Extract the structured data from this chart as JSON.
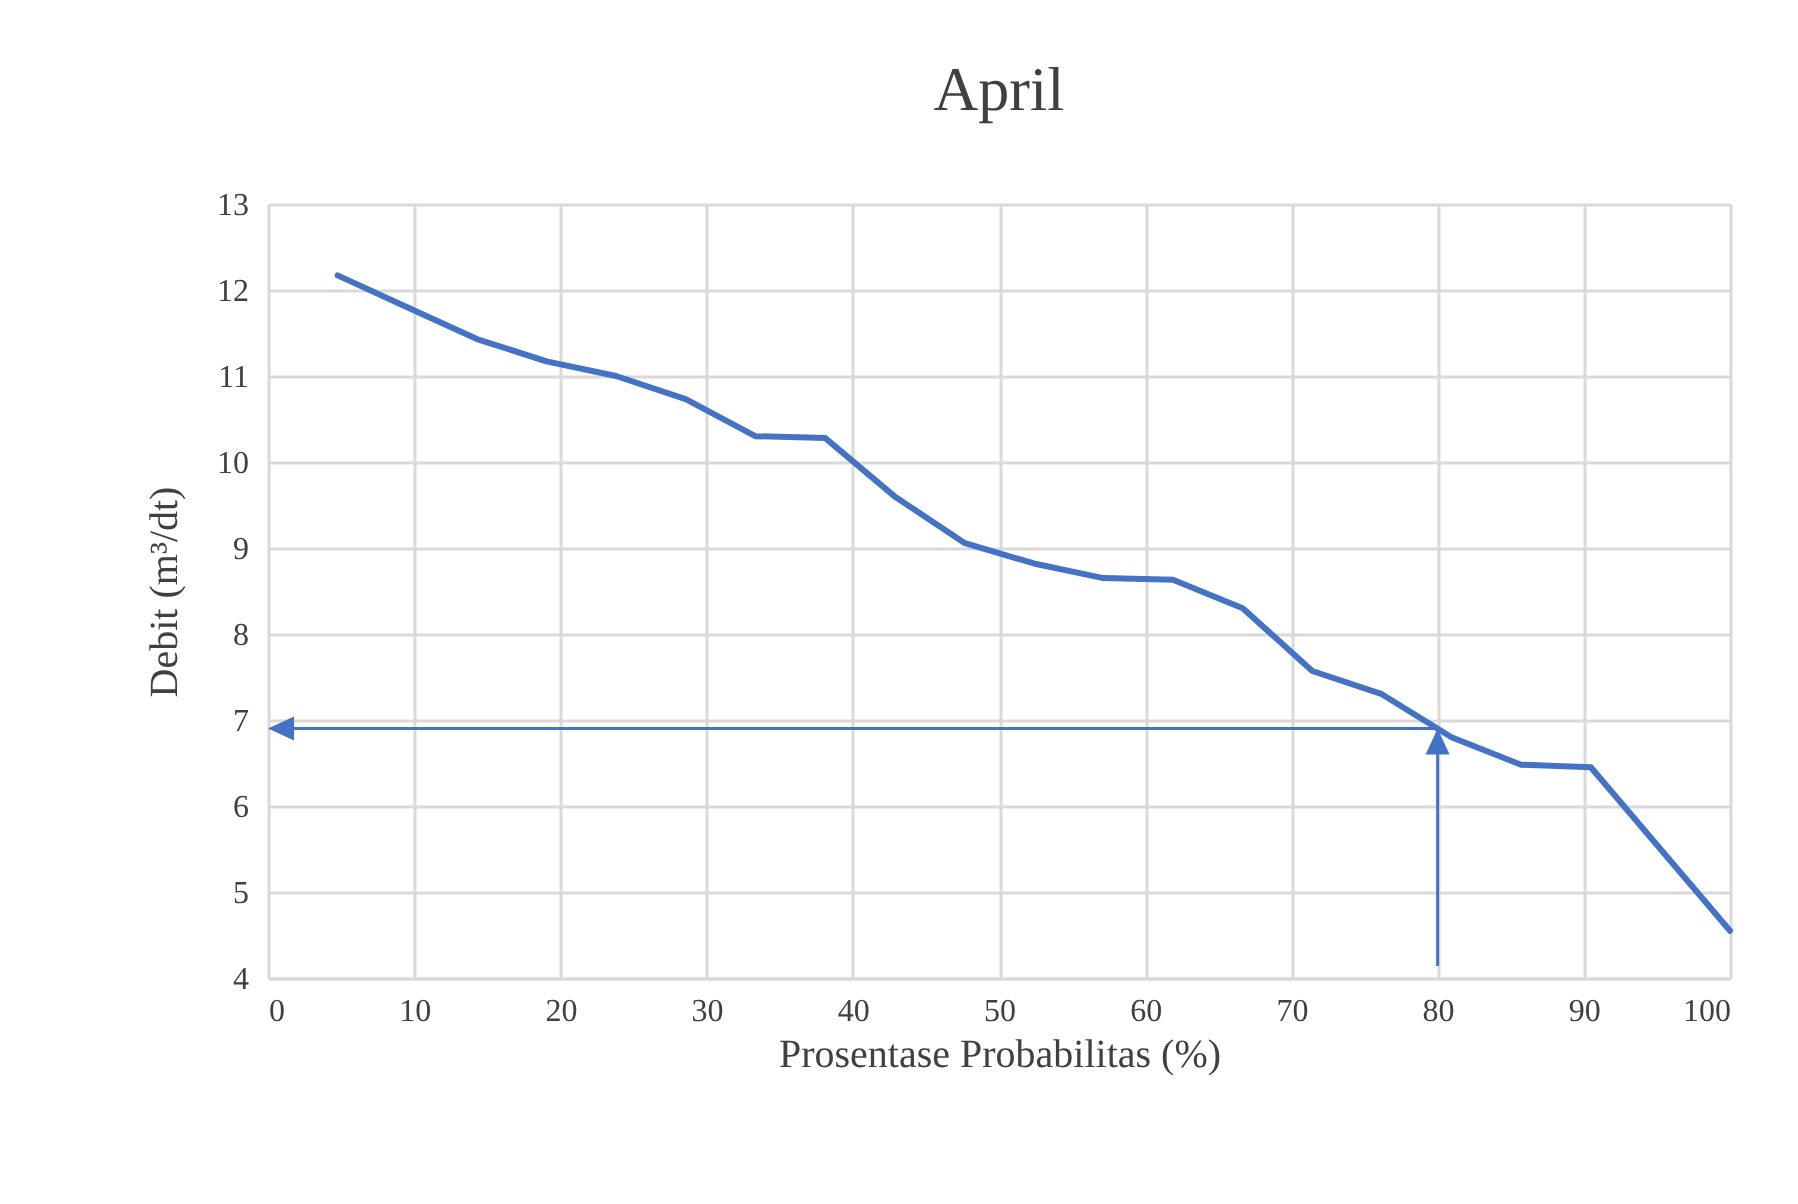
{
  "chart_data": {
    "type": "line",
    "title": "April",
    "xlabel": "Prosentase Probabilitas (%)",
    "ylabel": "Debit (m³/dt)",
    "x": [
      4.76,
      9.52,
      14.29,
      19.05,
      23.81,
      28.57,
      33.33,
      38.1,
      42.86,
      47.62,
      52.38,
      57.14,
      61.9,
      66.67,
      71.43,
      76.19,
      80.95,
      85.71,
      90.48,
      100
    ],
    "series": [
      {
        "color": "#4472c4",
        "values": [
          12.17,
          11.8,
          11.43,
          11.17,
          11.0,
          10.73,
          10.3,
          10.28,
          9.6,
          9.06,
          8.82,
          8.65,
          8.63,
          8.3,
          7.57,
          7.3,
          6.8,
          6.48,
          6.45,
          4.55
        ]
      }
    ],
    "xlim": [
      0,
      100
    ],
    "xticks": [
      0,
      10,
      20,
      30,
      40,
      50,
      60,
      70,
      80,
      90,
      100
    ],
    "ylim": [
      4,
      13
    ],
    "yticks": [
      4,
      5,
      6,
      7,
      8,
      9,
      10,
      11,
      12,
      13
    ],
    "grid": true,
    "marker": "none",
    "line_style": "solid",
    "ref_lines": [
      {
        "axis": "y",
        "value": 6.9,
        "color": "#4472c4"
      },
      {
        "axis": "x",
        "value": 80,
        "color": "#4472c4"
      }
    ]
  }
}
